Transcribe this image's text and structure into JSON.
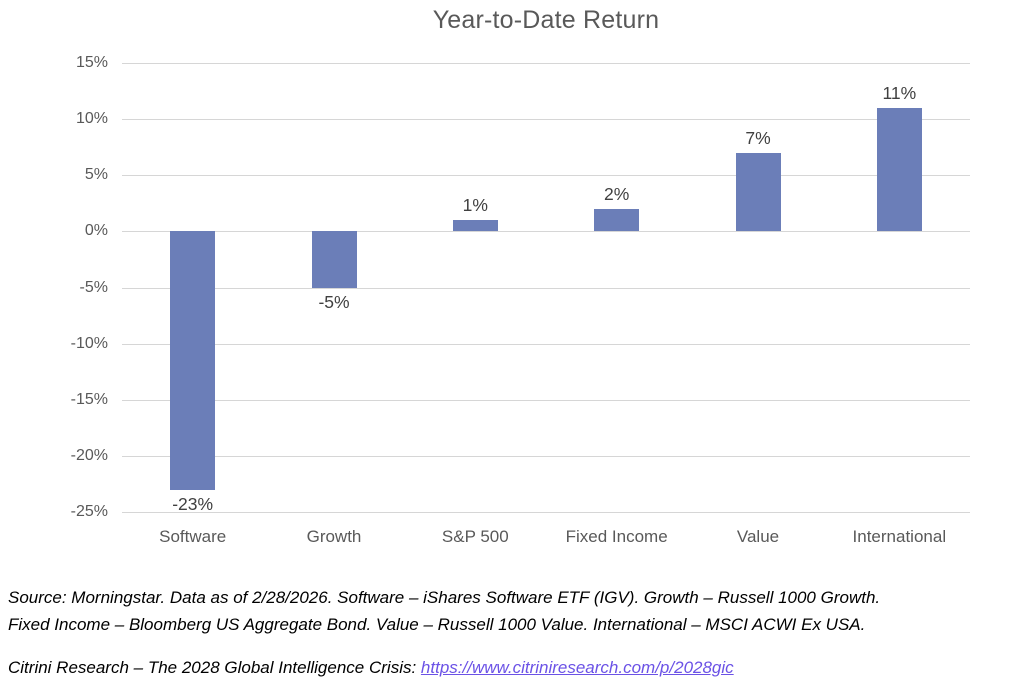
{
  "chart_data": {
    "type": "bar",
    "title": "Year-to-Date Return",
    "categories": [
      "Software",
      "Growth",
      "S&P 500",
      "Fixed Income",
      "Value",
      "International"
    ],
    "values": [
      -23,
      -5,
      1,
      2,
      7,
      11
    ],
    "data_labels": [
      "-23%",
      "-5%",
      "1%",
      "2%",
      "7%",
      "11%"
    ],
    "y_ticks": [
      15,
      10,
      5,
      0,
      -5,
      -10,
      -15,
      -20,
      -25
    ],
    "y_tick_labels": [
      "15%",
      "10%",
      "5%",
      "0%",
      "-5%",
      "-10%",
      "-15%",
      "-20%",
      "-25%"
    ],
    "ylim": [
      -25,
      15
    ],
    "grid": true,
    "legend": "none",
    "xlabel": "",
    "ylabel": "",
    "bar_color": "#6B7EB8",
    "gridline_color": "#D6D6D6",
    "title_color": "#595959",
    "axis_label_color": "#595959",
    "data_label_color": "#404040"
  },
  "footer": {
    "source_lines": [
      "Source: Morningstar. Data as of 2/28/2026. Software – iShares Software ETF (IGV). Growth – Russell 1000 Growth.",
      "Fixed Income – Bloomberg US Aggregate Bond. Value – Russell 1000 Value. International – MSCI ACWI Ex USA."
    ],
    "credit_text": "Citrini Research – The 2028 Global Intelligence Crisis: ",
    "link_text": "https://www.citriniresearch.com/p/2028gic",
    "link_color": "#6B52E6"
  }
}
